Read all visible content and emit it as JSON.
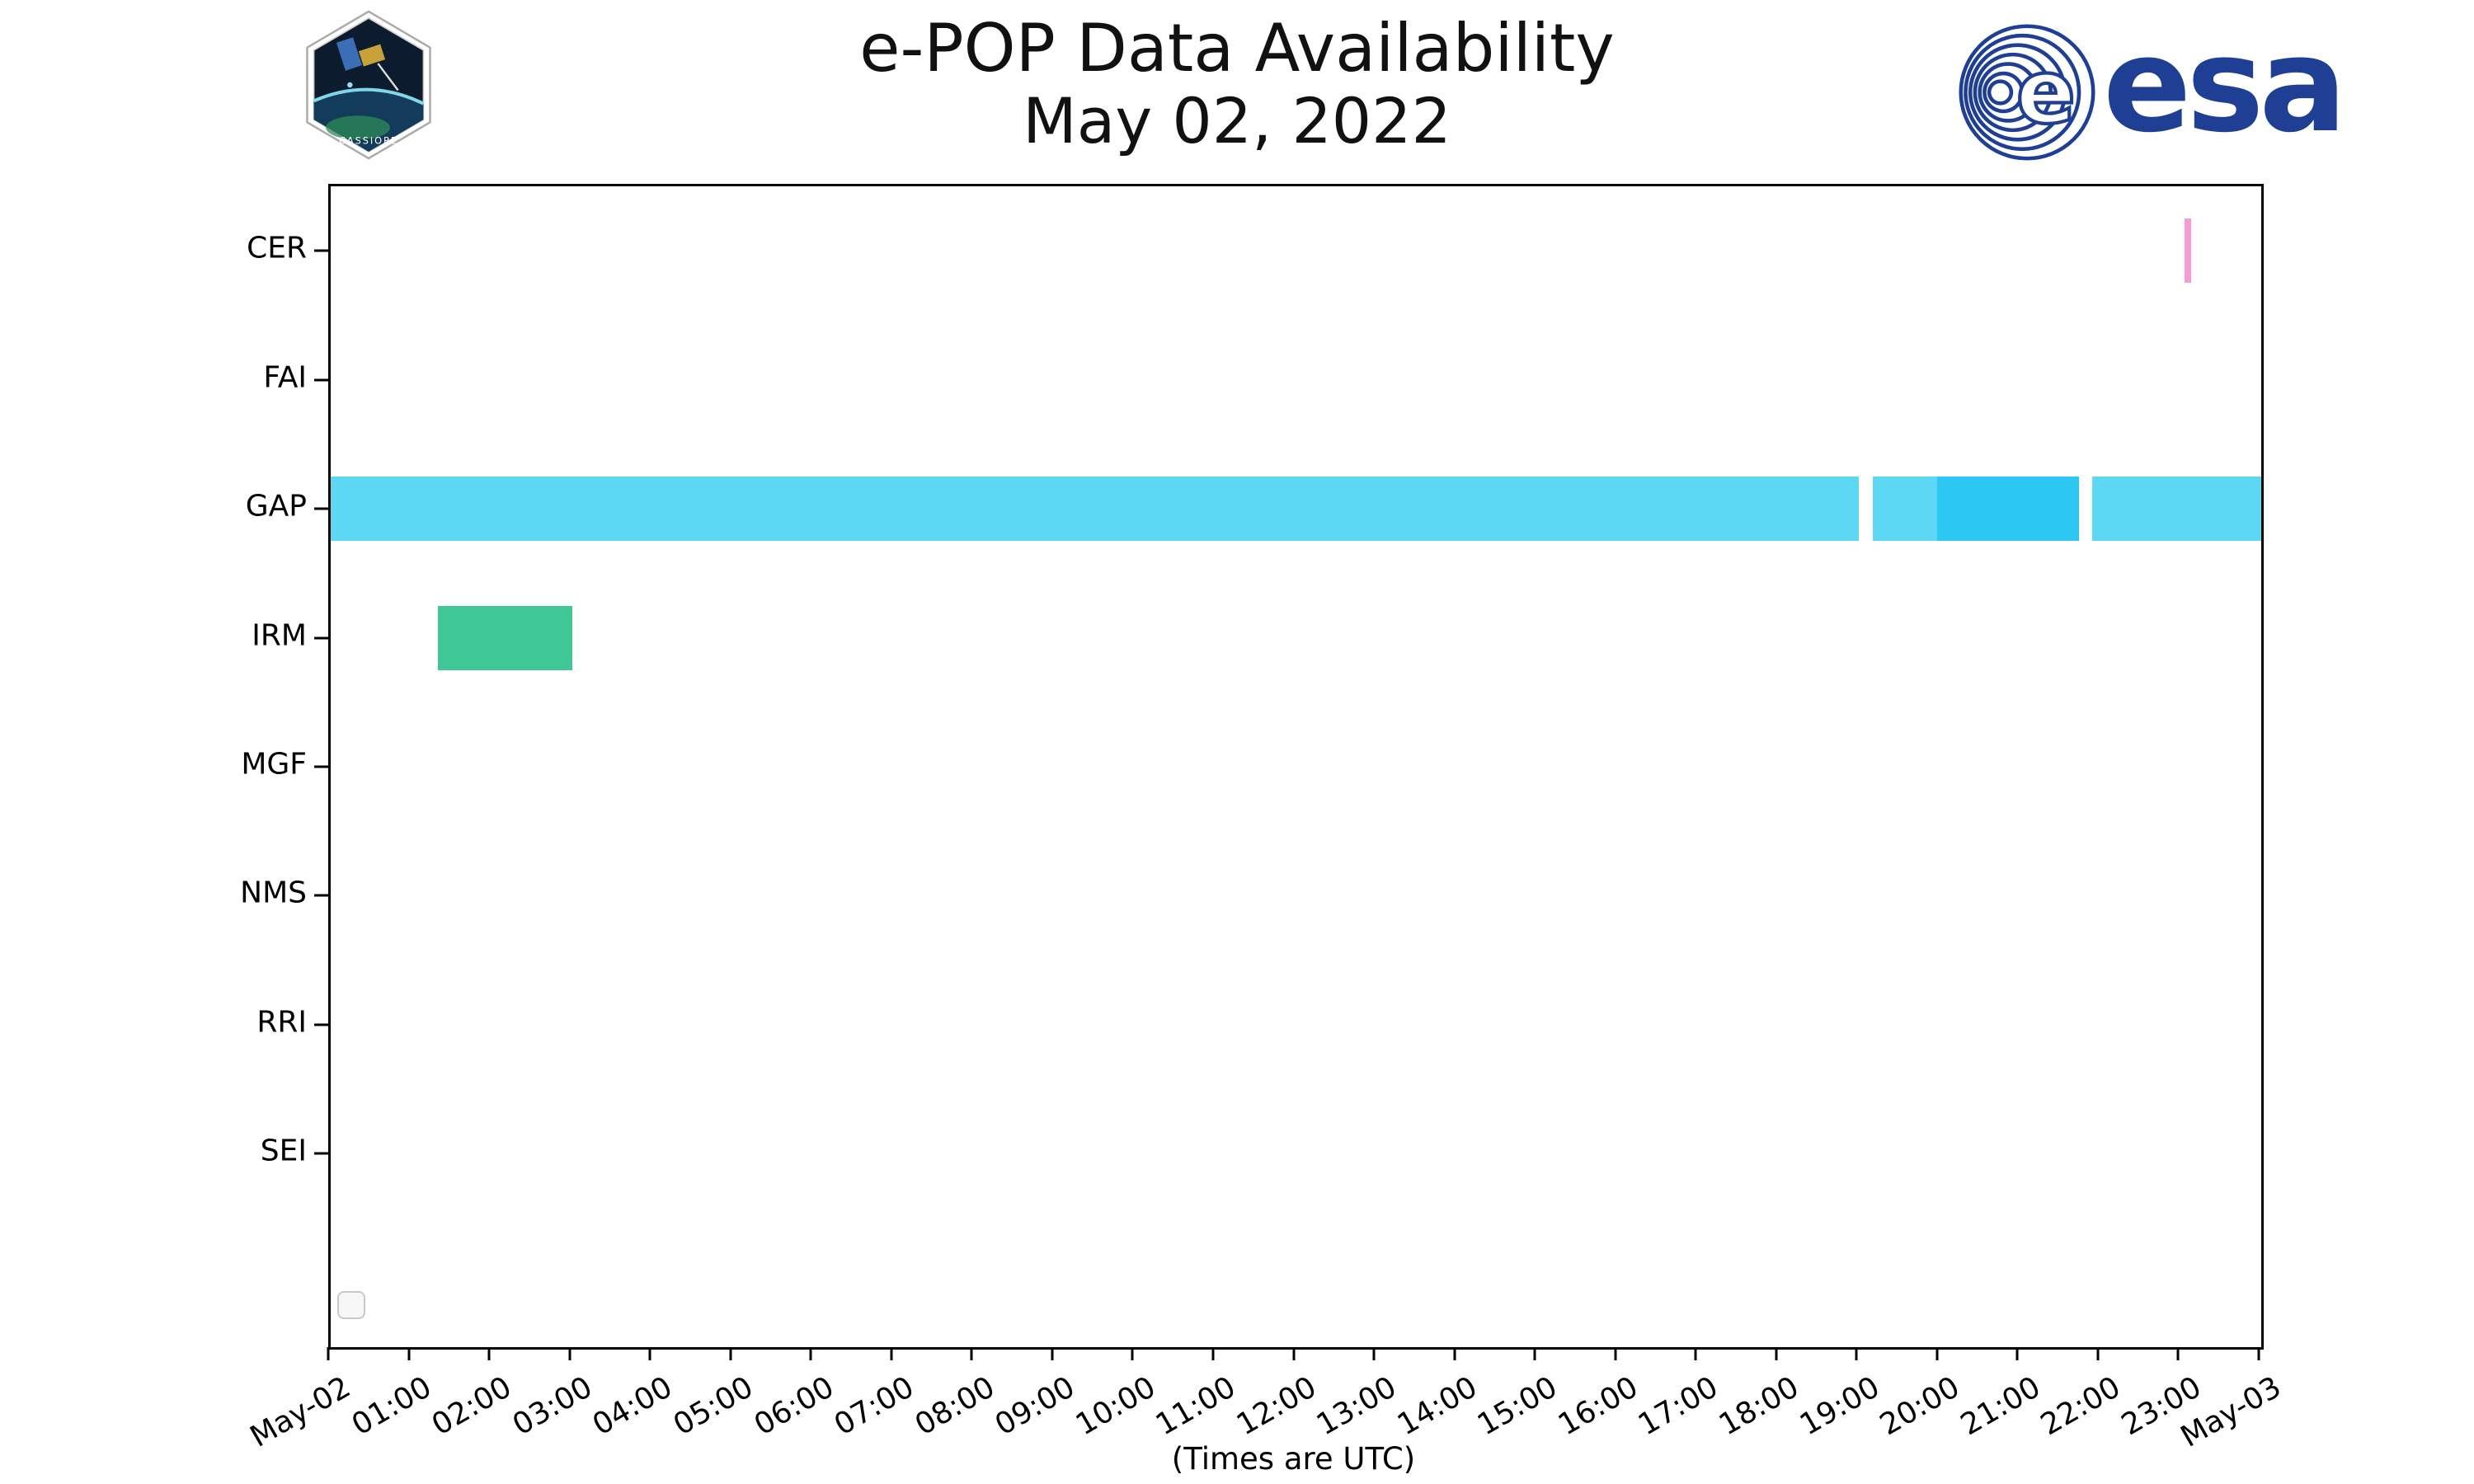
{
  "header": {
    "title_line1": "e-POP Data Availability",
    "title_line2": "May 02, 2022",
    "cassiope_patch_label": "CASSIOPE",
    "esa_wordmark": "esa"
  },
  "footer": {
    "note": "(Times are UTC)"
  },
  "chart_data": {
    "type": "timeline",
    "title": "e-POP Data Availability",
    "subtitle": "May 02, 2022",
    "rows": [
      "CER",
      "FAI",
      "GAP",
      "IRM",
      "MGF",
      "NMS",
      "RRI",
      "SEI"
    ],
    "row_slots": 9,
    "x_axis": {
      "unit": "hours UTC",
      "min": 0,
      "max": 24,
      "tick_labels": [
        "May-02",
        "01:00",
        "02:00",
        "03:00",
        "04:00",
        "05:00",
        "06:00",
        "07:00",
        "08:00",
        "09:00",
        "10:00",
        "11:00",
        "12:00",
        "13:00",
        "14:00",
        "15:00",
        "16:00",
        "17:00",
        "18:00",
        "19:00",
        "20:00",
        "21:00",
        "22:00",
        "23:00",
        "May-03"
      ],
      "note": "(Times are UTC)"
    },
    "colors": {
      "gap_light": "#5dd8f4",
      "gap_dark": "#2cc8f3",
      "irm_green": "#3fc795",
      "cer_pink": "#f59bd5",
      "esa_blue": "#1e3f94",
      "axis": "#000000"
    },
    "bars": [
      {
        "row": "CER",
        "start_hour": 23.05,
        "end_hour": 23.13,
        "color": "#f59bd5"
      },
      {
        "row": "GAP",
        "start_hour": 0.0,
        "end_hour": 19.0,
        "color": "#5dd8f4"
      },
      {
        "row": "GAP",
        "start_hour": 19.17,
        "end_hour": 19.97,
        "color": "#5dd8f4"
      },
      {
        "row": "GAP",
        "start_hour": 19.97,
        "end_hour": 21.73,
        "color": "#2cc8f3"
      },
      {
        "row": "GAP",
        "start_hour": 21.9,
        "end_hour": 24.0,
        "color": "#5dd8f4"
      },
      {
        "row": "IRM",
        "start_hour": 1.33,
        "end_hour": 3.0,
        "color": "#3fc795"
      }
    ],
    "legend": {
      "visible": true,
      "entries": []
    }
  }
}
